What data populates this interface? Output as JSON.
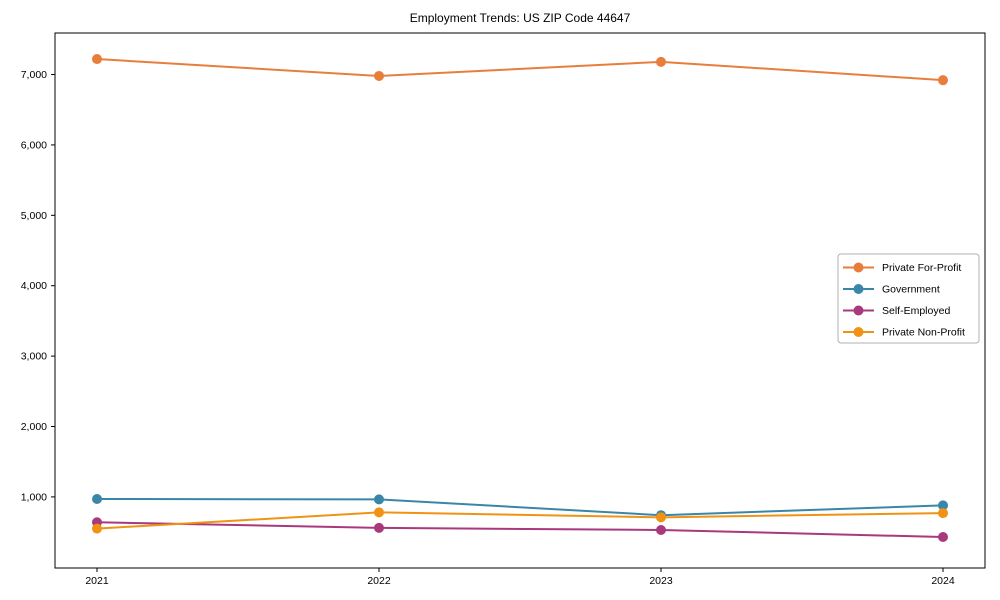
{
  "chart_data": {
    "type": "line",
    "title": "Employment Trends: US ZIP Code 44647",
    "xlabel": "",
    "ylabel": "",
    "categories": [
      "2021",
      "2022",
      "2023",
      "2024"
    ],
    "series": [
      {
        "name": "Private For-Profit",
        "color": "#e87e3c",
        "values": [
          7220,
          6980,
          7180,
          6920
        ]
      },
      {
        "name": "Government",
        "color": "#3a86a8",
        "values": [
          970,
          965,
          740,
          880
        ]
      },
      {
        "name": "Self-Employed",
        "color": "#a8397d",
        "values": [
          640,
          560,
          530,
          430
        ]
      },
      {
        "name": "Private Non-Profit",
        "color": "#f09315",
        "values": [
          550,
          780,
          710,
          770
        ]
      }
    ],
    "ylim": [
      -10,
      7590
    ],
    "yticks": [
      1000,
      2000,
      3000,
      4000,
      5000,
      6000,
      7000
    ],
    "ytick_labels": [
      "1,000",
      "2,000",
      "3,000",
      "4,000",
      "5,000",
      "6,000",
      "7,000"
    ],
    "grid": false,
    "legend_position": "center-right",
    "marker": "circle",
    "axis_color": "#000000"
  }
}
